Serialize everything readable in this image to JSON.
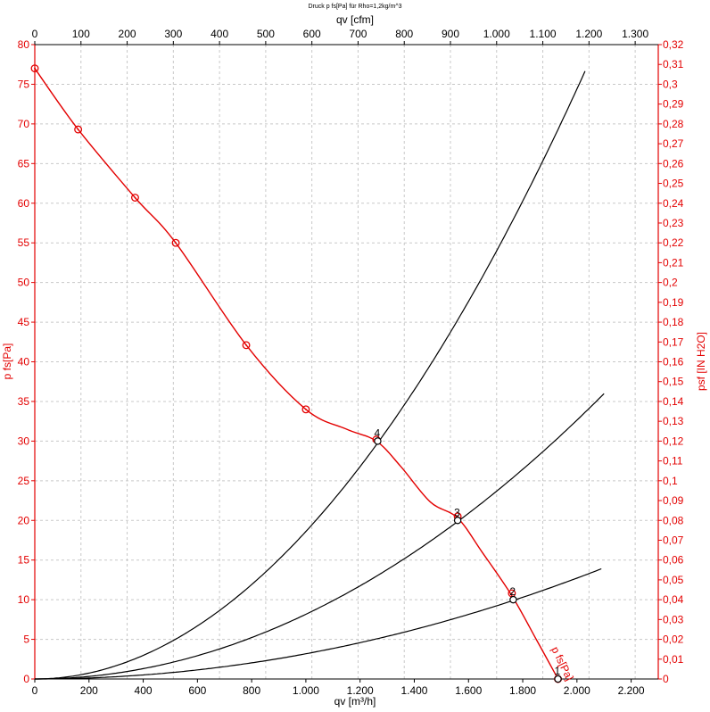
{
  "chart_data": {
    "type": "line",
    "title": "Druck p fs[Pa] für Rho=1,2kg/m^3",
    "xlabel": "qv [m³/h]",
    "x2label": "qv [cfm]",
    "ylabel": "p fs[Pa]",
    "y2label": "psf [IN H2O]",
    "xlim": [
      0,
      2300
    ],
    "ylim": [
      0,
      80
    ],
    "x2lim": [
      0,
      1350
    ],
    "y2lim": [
      0,
      0.32
    ],
    "grid": true,
    "x_ticks": [
      "0",
      "200",
      "400",
      "600",
      "800",
      "1.000",
      "1.200",
      "1.400",
      "1.600",
      "1.800",
      "2.000",
      "2.200"
    ],
    "x2_ticks": [
      "0",
      "100",
      "200",
      "300",
      "400",
      "500",
      "600",
      "700",
      "800",
      "900",
      "1.000",
      "1.100",
      "1.200",
      "1.300"
    ],
    "y_ticks": [
      "0",
      "5",
      "10",
      "15",
      "20",
      "25",
      "30",
      "35",
      "40",
      "45",
      "50",
      "55",
      "60",
      "65",
      "70",
      "75",
      "80"
    ],
    "y2_ticks": [
      "0",
      "0,01",
      "0,02",
      "0,03",
      "0,04",
      "0,05",
      "0,06",
      "0,07",
      "0,08",
      "0,09",
      "0,1",
      "0,11",
      "0,12",
      "0,13",
      "0,14",
      "0,15",
      "0,16",
      "0,17",
      "0,18",
      "0,19",
      "0,2",
      "0,21",
      "0,22",
      "0,23",
      "0,24",
      "0,25",
      "0,26",
      "0,27",
      "0,28",
      "0,29",
      "0,3",
      "0,31",
      "0,32"
    ],
    "series": [
      {
        "name": "p fs[Pa]",
        "color": "#e30000",
        "x": [
          0,
          160,
          370,
          520,
          780,
          1000,
          1150,
          1260,
          1350,
          1460,
          1560,
          1650,
          1760,
          1850,
          1930
        ],
        "y": [
          77,
          69.3,
          60.7,
          55,
          42.1,
          34,
          31.5,
          30,
          26.8,
          22.3,
          20.3,
          16,
          10.5,
          5,
          0
        ],
        "markers": [
          [
            0,
            77
          ],
          [
            160,
            69.3
          ],
          [
            370,
            60.7
          ],
          [
            520,
            55
          ],
          [
            780,
            42.1
          ],
          [
            1000,
            34
          ],
          [
            1260,
            30.2
          ],
          [
            1560,
            20.5
          ],
          [
            1760,
            10.8
          ],
          [
            1930,
            0
          ]
        ]
      },
      {
        "color": "#000000",
        "k": 1.86e-05,
        "x_end": 2030
      },
      {
        "color": "#000000",
        "k": 8.16e-06,
        "x_end": 2100
      },
      {
        "color": "#000000",
        "k": 3.18e-06,
        "x_end": 2090
      }
    ],
    "operating_points": [
      {
        "label": "1",
        "x": 1930,
        "y": 0
      },
      {
        "label": "2",
        "x": 1765,
        "y": 10
      },
      {
        "label": "3",
        "x": 1560,
        "y": 20
      },
      {
        "label": "4",
        "x": 1265,
        "y": 30
      }
    ]
  }
}
